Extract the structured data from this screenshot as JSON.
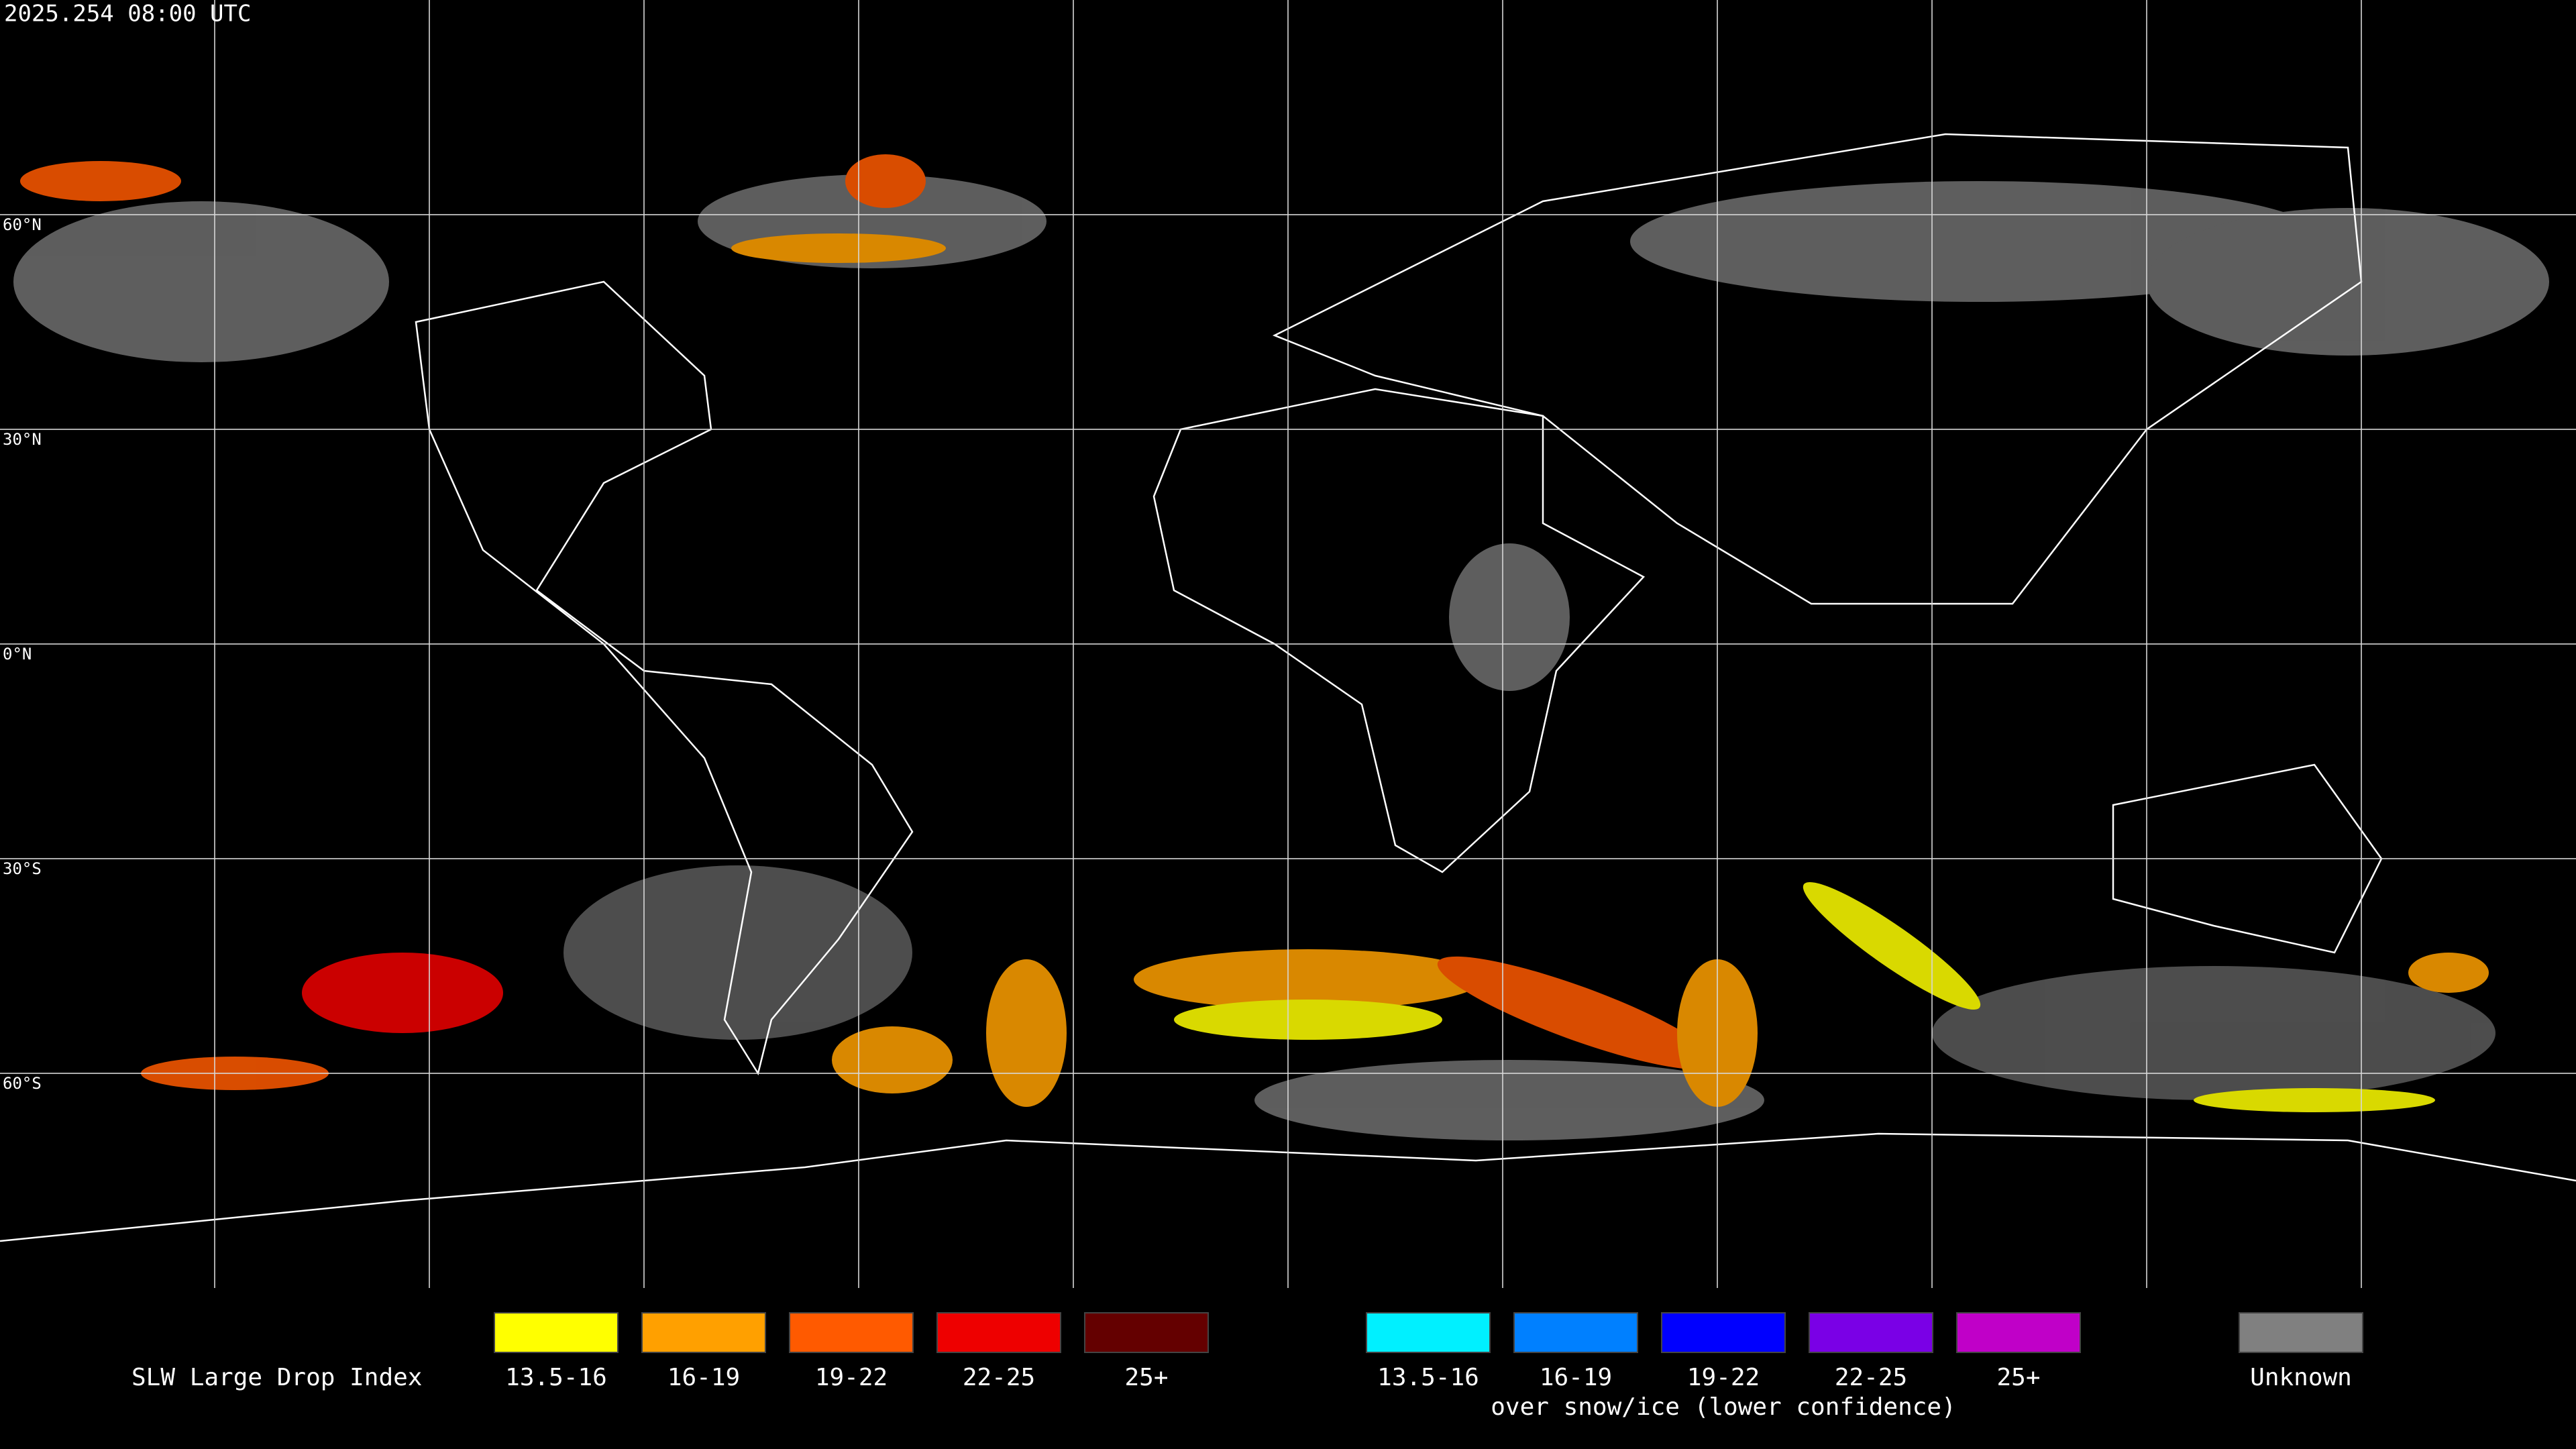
{
  "header": {
    "timestamp": "2025.254 08:00 UTC"
  },
  "map": {
    "latitude_labels": [
      "60°N",
      "30°N",
      "0°N",
      "30°S",
      "60°S"
    ]
  },
  "legend": {
    "title": "SLW Large Drop Index",
    "groups": [
      {
        "items": [
          {
            "label": "13.5-16",
            "color": "#ffff00"
          },
          {
            "label": "16-19",
            "color": "#ffa000"
          },
          {
            "label": "19-22",
            "color": "#ff5a00"
          },
          {
            "label": "22-25",
            "color": "#ee0000"
          },
          {
            "label": "25+",
            "color": "#640000"
          }
        ]
      },
      {
        "items": [
          {
            "label": "13.5-16",
            "color": "#00f0ff"
          },
          {
            "label": "16-19",
            "color": "#0080ff"
          },
          {
            "label": "19-22",
            "color": "#0000ff"
          },
          {
            "label": "22-25",
            "color": "#7a00e6"
          },
          {
            "label": "25+",
            "color": "#c000c8"
          }
        ],
        "caption": "over snow/ice (lower confidence)"
      }
    ],
    "unknown": {
      "label": "Unknown",
      "color": "#808080"
    }
  }
}
